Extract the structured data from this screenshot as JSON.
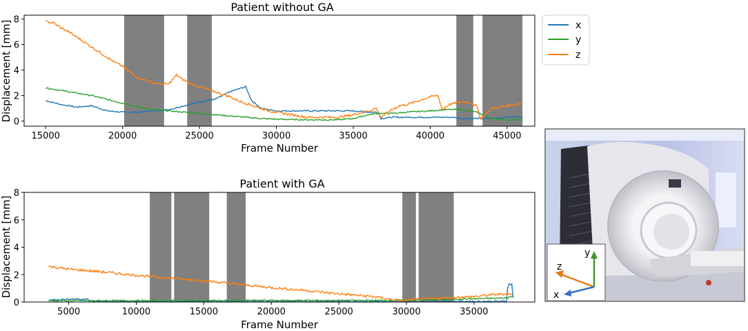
{
  "chart_data": [
    {
      "type": "line",
      "title": "Patient without GA",
      "xlabel": "Frame Number",
      "ylabel": "Displacement [mm]",
      "xlim": [
        13600,
        46800
      ],
      "ylim": [
        -0.4,
        8.3
      ],
      "xticks": [
        15000,
        20000,
        25000,
        30000,
        35000,
        40000,
        45000
      ],
      "yticks": [
        0,
        2,
        4,
        6,
        8
      ],
      "shaded_regions": [
        [
          20100,
          22700
        ],
        [
          24200,
          25800
        ],
        [
          41700,
          42800
        ],
        [
          43400,
          46000
        ]
      ],
      "series": [
        {
          "name": "x",
          "color": "#1f77b4",
          "x": [
            15000,
            16000,
            17000,
            18000,
            19000,
            20000,
            21000,
            22000,
            23000,
            24000,
            25000,
            26000,
            27000,
            28000,
            28400,
            29000,
            30000,
            32000,
            34000,
            35000,
            36000,
            36600,
            36800,
            37500,
            38500,
            40000,
            41000,
            41500,
            42000,
            43000,
            44000,
            45000,
            46000
          ],
          "y": [
            1.6,
            1.3,
            1.1,
            1.2,
            0.8,
            0.7,
            0.7,
            0.8,
            0.9,
            1.2,
            1.5,
            1.7,
            2.3,
            2.7,
            1.6,
            1.0,
            0.8,
            0.8,
            0.8,
            0.8,
            0.7,
            0.7,
            0.2,
            0.3,
            0.3,
            0.3,
            0.3,
            0.3,
            0.2,
            0.2,
            0.2,
            0.3,
            0.35
          ]
        },
        {
          "name": "y",
          "color": "#2ca02c",
          "x": [
            15000,
            16000,
            17000,
            18000,
            19000,
            20000,
            21000,
            22000,
            23000,
            24000,
            25000,
            26000,
            27000,
            28000,
            29000,
            30000,
            32000,
            34000,
            35000,
            36000,
            36600,
            37500,
            38500,
            40000,
            41000,
            42000,
            43000,
            44000,
            45000,
            46000
          ],
          "y": [
            2.6,
            2.4,
            2.2,
            2.0,
            1.7,
            1.4,
            1.1,
            0.9,
            0.8,
            0.7,
            0.6,
            0.5,
            0.4,
            0.3,
            0.2,
            0.15,
            0.1,
            0.1,
            0.2,
            0.5,
            0.6,
            0.6,
            0.7,
            0.8,
            0.9,
            0.9,
            0.7,
            0.2,
            0.1,
            0.1
          ]
        },
        {
          "name": "z",
          "color": "#ff7f0e",
          "x": [
            15000,
            15500,
            16000,
            16500,
            17000,
            17500,
            18000,
            18500,
            19000,
            19500,
            20000,
            20500,
            21000,
            21500,
            22000,
            22500,
            23000,
            23500,
            24000,
            24500,
            25000,
            25500,
            26000,
            26500,
            27000,
            27500,
            28000,
            28500,
            29000,
            29500,
            30000,
            31000,
            32000,
            33000,
            34000,
            35000,
            36000,
            36500,
            36800,
            37500,
            38000,
            38500,
            39000,
            39500,
            40000,
            40500,
            40800,
            41200,
            42000,
            42500,
            43000,
            43300,
            44000,
            45000,
            46000
          ],
          "y": [
            7.8,
            7.7,
            7.3,
            7.0,
            6.6,
            6.2,
            5.8,
            5.4,
            5.0,
            4.6,
            4.3,
            3.8,
            3.4,
            3.2,
            3.0,
            2.9,
            2.9,
            3.6,
            3.2,
            2.9,
            2.7,
            2.5,
            2.3,
            2.1,
            1.9,
            1.6,
            1.4,
            1.2,
            1.0,
            0.8,
            0.7,
            0.5,
            0.3,
            0.3,
            0.3,
            0.5,
            0.8,
            1.0,
            0.3,
            0.9,
            1.2,
            1.3,
            1.5,
            1.7,
            1.9,
            2.0,
            0.9,
            1.3,
            1.5,
            1.5,
            1.2,
            0.2,
            1.0,
            1.2,
            1.4
          ]
        }
      ],
      "legend": {
        "placement": "outside-right",
        "entries": [
          "x",
          "y",
          "z"
        ]
      }
    },
    {
      "type": "line",
      "title": "Patient with GA",
      "xlabel": "Frame Number",
      "ylabel": "Displacement [mm]",
      "xlim": [
        1700,
        39500
      ],
      "ylim": [
        0,
        8
      ],
      "xticks": [
        5000,
        10000,
        15000,
        20000,
        25000,
        30000,
        35000
      ],
      "yticks": [
        0,
        2,
        4,
        6,
        8
      ],
      "shaded_regions": [
        [
          11000,
          12600
        ],
        [
          12800,
          15400
        ],
        [
          16700,
          18100
        ],
        [
          29700,
          30700
        ],
        [
          30900,
          33500
        ]
      ],
      "series": [
        {
          "name": "x",
          "color": "#1f77b4",
          "x": [
            3500,
            5000,
            6400,
            6600,
            10000,
            15000,
            20000,
            25000,
            30000,
            35000,
            37400,
            37500,
            37600,
            37800,
            37900
          ],
          "y": [
            0.15,
            0.2,
            0.2,
            0.05,
            0.05,
            0.05,
            0.05,
            0.05,
            0.05,
            0.05,
            0.05,
            1.1,
            1.3,
            1.3,
            0.3
          ]
        },
        {
          "name": "y",
          "color": "#2ca02c",
          "x": [
            3500,
            10000,
            20000,
            30000,
            37500,
            37900
          ],
          "y": [
            0.1,
            0.1,
            0.12,
            0.12,
            0.3,
            0.5
          ]
        },
        {
          "name": "z",
          "color": "#ff7f0e",
          "x": [
            3500,
            5000,
            7500,
            10000,
            12500,
            15000,
            17500,
            20000,
            22500,
            25000,
            27500,
            29500,
            31000,
            33000,
            35000,
            36500,
            37800
          ],
          "y": [
            2.6,
            2.4,
            2.2,
            1.95,
            1.75,
            1.55,
            1.3,
            1.05,
            0.85,
            0.6,
            0.4,
            0.1,
            0.2,
            0.3,
            0.4,
            0.55,
            0.6
          ]
        }
      ]
    }
  ],
  "legend_labels": {
    "x": "x",
    "y": "y",
    "z": "z"
  },
  "photo_inset": {
    "axes": {
      "x": "x",
      "y": "y",
      "z": "z"
    },
    "colors": {
      "x": "#3a6fc4",
      "y": "#3b9a2a",
      "z": "#e07a14"
    }
  }
}
